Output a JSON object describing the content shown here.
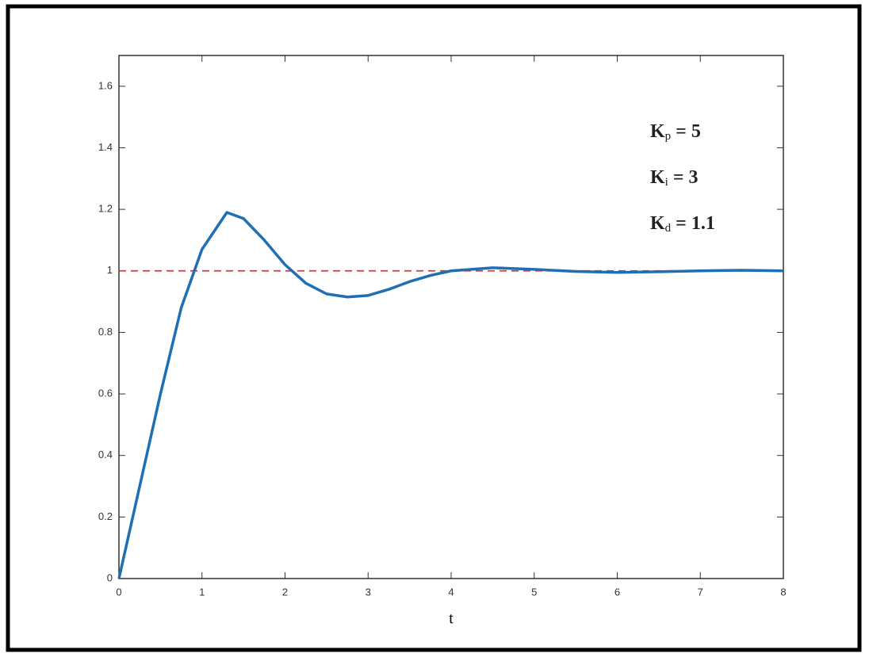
{
  "chart_data": {
    "type": "line",
    "xlabel": "t",
    "xlim": [
      0,
      8
    ],
    "xticks": [
      0,
      1,
      2,
      3,
      4,
      5,
      6,
      7,
      8
    ],
    "ylim": [
      0,
      1.7
    ],
    "yticks": [
      0,
      0.2,
      0.4,
      0.6,
      0.8,
      1,
      1.2,
      1.4,
      1.6
    ],
    "grid": false,
    "series": [
      {
        "color": "#e8333a",
        "dash": true,
        "x": [
          0,
          8
        ],
        "values": [
          1,
          1
        ]
      },
      {
        "color": "#1f6fb5",
        "dash": false,
        "x": [
          0,
          0.25,
          0.5,
          0.75,
          1,
          1.3,
          1.5,
          1.75,
          2,
          2.25,
          2.5,
          2.75,
          3,
          3.25,
          3.5,
          3.75,
          4,
          4.5,
          5,
          5.5,
          6,
          6.5,
          7,
          7.5,
          8
        ],
        "values": [
          0,
          0.3,
          0.6,
          0.88,
          1.07,
          1.19,
          1.17,
          1.1,
          1.02,
          0.96,
          0.925,
          0.915,
          0.92,
          0.94,
          0.965,
          0.985,
          1.0,
          1.01,
          1.005,
          0.998,
          0.995,
          0.997,
          1.0,
          1.002,
          1.0
        ]
      }
    ],
    "annotations": [
      {
        "symbol": "K",
        "subscript": "p",
        "text": "= 5"
      },
      {
        "symbol": "K",
        "subscript": "i",
        "text": "= 3"
      },
      {
        "symbol": "K",
        "subscript": "d",
        "text": "= 1.1"
      }
    ]
  }
}
